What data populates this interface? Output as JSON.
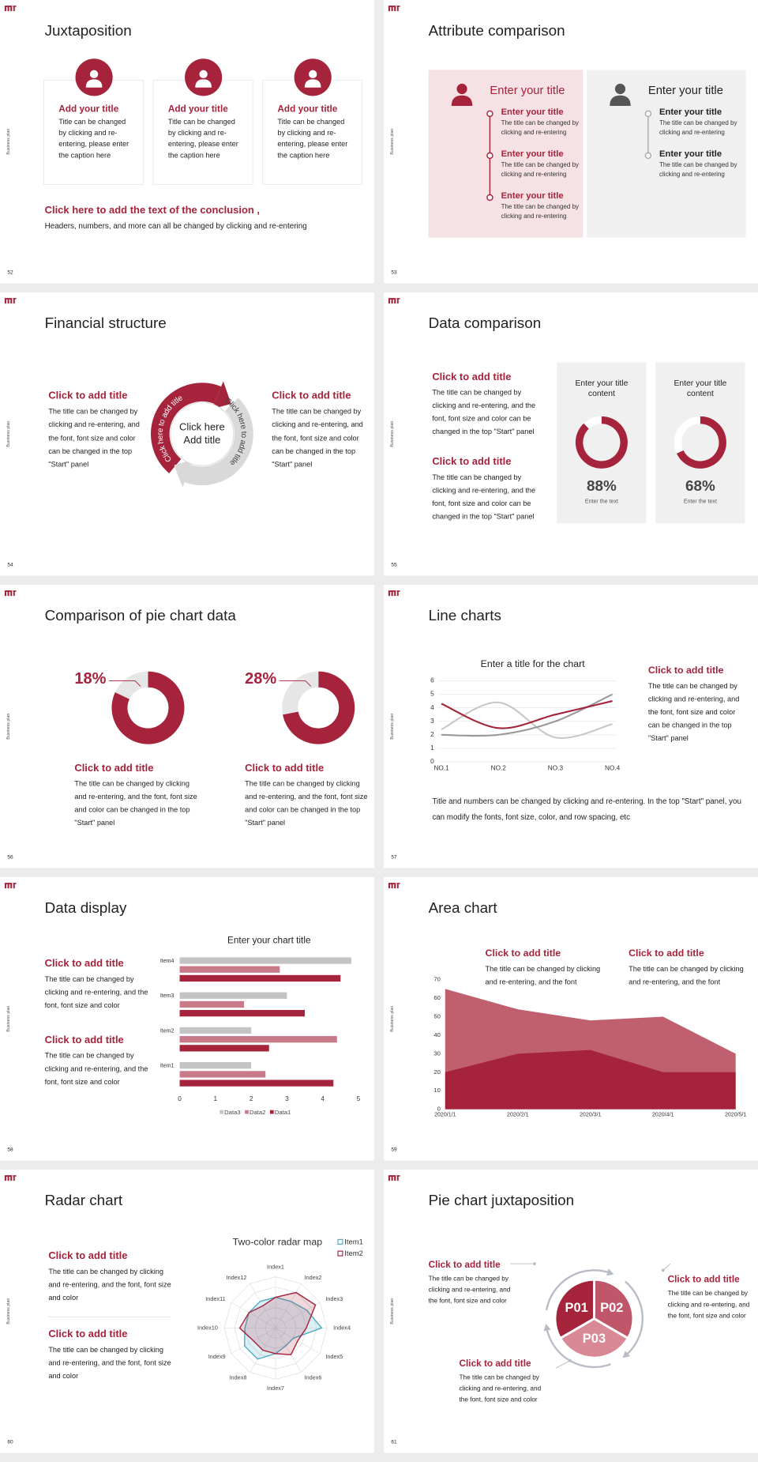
{
  "slides": [
    {
      "number": "52",
      "side_label": "Business plan",
      "title": "Juxtaposition",
      "cards": [
        {
          "title": "Add your title",
          "text": "Title can be changed by clicking and re-entering, please enter the caption here"
        },
        {
          "title": "Add your title",
          "text": "Title can be changed by clicking and re-entering, please enter the caption here"
        },
        {
          "title": "Add your title",
          "text": "Title can be changed by clicking and re-entering, please enter the caption here"
        }
      ],
      "conclusion_title": "Click here to add the text of the conclusion ,",
      "conclusion_text": "Headers, numbers, and more can all be changed by clicking and re-entering"
    },
    {
      "number": "53",
      "side_label": "Business plan",
      "title": "Attribute comparison",
      "panels": [
        {
          "heading": "Enter your title",
          "items": [
            {
              "title": "Enter your title",
              "text": "The title can be changed by clicking and re-entering"
            },
            {
              "title": "Enter your title",
              "text": "The title can be changed by clicking and re-entering"
            },
            {
              "title": "Enter your title",
              "text": "The title can be changed by clicking and re-entering"
            }
          ]
        },
        {
          "heading": "Enter your title",
          "items": [
            {
              "title": "Enter your title",
              "text": "The title can be changed by clicking and re-entering"
            },
            {
              "title": "Enter your title",
              "text": "The title can be changed by clicking and re-entering"
            }
          ]
        }
      ]
    },
    {
      "number": "54",
      "side_label": "Business plan",
      "title": "Financial structure",
      "blocks": [
        {
          "title": "Click to add title",
          "text": "The title can be changed by clicking and re-entering, and the font, font size and color can be changed in the top \"Start\" panel"
        },
        {
          "title": "Click to add title",
          "text": "The title can be changed by clicking and re-entering, and the font, font size and color can be changed in the top \"Start\" panel"
        }
      ],
      "center_text": "Click here Add title",
      "arc_labels": [
        "Click here to add title",
        "Click here to add title"
      ]
    },
    {
      "number": "55",
      "side_label": "Business plan",
      "title": "Data comparison",
      "blocks": [
        {
          "title": "Click to add title",
          "text": "The title can be changed by clicking and re-entering, and the font, font size and color can be changed in the top \"Start\" panel"
        },
        {
          "title": "Click to add title",
          "text": "The title can be changed by clicking and re-entering, and the font, font size and color can be changed in the top \"Start\" panel"
        }
      ],
      "cards": [
        {
          "heading": "Enter your title content",
          "value": 88,
          "value_label": "88%",
          "caption": "Enter the text"
        },
        {
          "heading": "Enter your title content",
          "value": 68,
          "value_label": "68%",
          "caption": "Enter the text"
        }
      ]
    },
    {
      "number": "56",
      "side_label": "Business plan",
      "title": "Comparison of pie chart data",
      "items": [
        {
          "value": 18,
          "value_label": "18%",
          "title": "Click to add title",
          "text": "The title can be changed by clicking and re-entering, and the font, font size and color can be changed in the top \"Start\" panel"
        },
        {
          "value": 28,
          "value_label": "28%",
          "title": "Click to add title",
          "text": "The title can be changed by clicking and re-entering, and the font, font size and color can be changed in the top \"Start\" panel"
        }
      ]
    },
    {
      "number": "57",
      "side_label": "Business plan",
      "title": "Line charts",
      "chart": {
        "type": "line",
        "title": "Enter a title for the chart",
        "categories": [
          "NO.1",
          "NO.2",
          "NO.3",
          "NO.4"
        ],
        "series": [
          {
            "color": "#c8c8c8",
            "values": [
              2.4,
              4.4,
              1.8,
              2.8
            ]
          },
          {
            "color": "#9a9a9a",
            "values": [
              2,
              2,
              3,
              5
            ]
          },
          {
            "color": "#a5233b",
            "values": [
              4.3,
              2.5,
              3.5,
              4.5
            ]
          }
        ],
        "ylim": [
          0,
          6
        ],
        "yticks": [
          0,
          1,
          2,
          3,
          4,
          5,
          6
        ],
        "grid": true
      },
      "block": {
        "title": "Click to add title",
        "text": "The title can be changed by clicking and re-entering, and the font, font size and color can be changed in the top \"Start\" panel"
      },
      "note": "Title and numbers can be changed by clicking and re-entering. In the top \"Start\" panel, you can modify the fonts, font size, color, and row spacing, etc"
    },
    {
      "number": "58",
      "side_label": "Business plan",
      "title": "Data display",
      "blocks": [
        {
          "title": "Click to add title",
          "text": "The title can be changed by clicking and re-entering, and the font, font size and color"
        },
        {
          "title": "Click to add title",
          "text": "The title can be changed by clicking and re-entering, and the font, font size and color"
        }
      ],
      "chart": {
        "type": "barh",
        "title": "Enter your chart title",
        "categories": [
          "Item1",
          "Item2",
          "Item3",
          "Item4"
        ],
        "series": [
          {
            "name": "Data3",
            "color": "#c3c3c3",
            "values": [
              2,
              2,
              3,
              4.8
            ]
          },
          {
            "name": "Data2",
            "color": "#c97a89",
            "values": [
              2.4,
              4.4,
              1.8,
              2.8
            ]
          },
          {
            "name": "Data1",
            "color": "#a5233b",
            "values": [
              4.3,
              2.5,
              3.5,
              4.5
            ]
          }
        ],
        "xlim": [
          0,
          5
        ],
        "xticks": [
          0,
          1,
          2,
          3,
          4,
          5
        ],
        "grid": false
      }
    },
    {
      "number": "59",
      "side_label": "Business plan",
      "title": "Area chart",
      "blocks": [
        {
          "title": "Click to add title",
          "text": "The title can be changed by clicking and re-entering, and the font"
        },
        {
          "title": "Click to add title",
          "text": "The title can be changed by clicking and re-entering, and the font"
        }
      ],
      "chart": {
        "type": "area",
        "categories": [
          "2020/1/1",
          "2020/2/1",
          "2020/3/1",
          "2020/4/1",
          "2020/5/1"
        ],
        "series": [
          {
            "color": "#c0606e",
            "values": [
              65,
              54,
              48,
              50,
              30
            ]
          },
          {
            "color": "#a5233b",
            "values": [
              20,
              30,
              32,
              20,
              20
            ]
          }
        ],
        "ylim": [
          0,
          70
        ],
        "yticks": [
          0,
          10,
          20,
          30,
          40,
          50,
          60,
          70
        ]
      }
    },
    {
      "number": "60",
      "side_label": "Business plan",
      "title": "Radar chart",
      "blocks": [
        {
          "title": "Click to add title",
          "text": "The title can be changed by clicking and re-entering, and the font, font size and color"
        },
        {
          "title": "Click to add title",
          "text": "The title can be changed by clicking and re-entering, and the font, font size and color"
        }
      ],
      "chart": {
        "type": "radar",
        "title": "Two-color radar map",
        "categories": [
          "Index1",
          "Index2",
          "Index3",
          "Index4",
          "Index5",
          "Index6",
          "Index7",
          "Index8",
          "Index9",
          "Index10",
          "Index11",
          "Index12"
        ],
        "series": [
          {
            "name": "Item1",
            "color": "#4bacc6",
            "values": [
              3,
              3,
              3.5,
              4.5,
              2,
              2,
              2.5,
              3.5,
              3.5,
              3,
              3,
              3
            ]
          },
          {
            "name": "Item2",
            "color": "#a5233b",
            "values": [
              3,
              4,
              4.5,
              3,
              2.5,
              3,
              2.5,
              2.5,
              2.5,
              3.5,
              3,
              2.5
            ]
          }
        ],
        "rlim": [
          0,
          5
        ],
        "rticks": [
          1,
          2,
          3,
          4,
          5
        ]
      }
    },
    {
      "number": "61",
      "side_label": "Business plan",
      "title": "Pie chart juxtaposition",
      "segments": [
        "P01",
        "P02",
        "P03"
      ],
      "blocks": [
        {
          "title": "Click to add title",
          "text": "The title can be changed by clicking and re-entering, and the font, font size and color"
        },
        {
          "title": "Click to add title",
          "text": "The title can be changed by clicking and re-entering, and the font, font size and color"
        },
        {
          "title": "Click to add title",
          "text": "The title can be changed by clicking and re-entering, and the font, font size and color"
        }
      ]
    }
  ]
}
